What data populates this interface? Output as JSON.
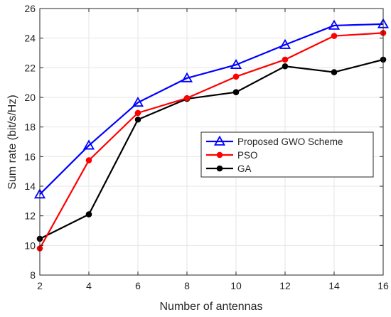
{
  "chart_data": {
    "type": "line",
    "title": "",
    "xlabel": "Number of antennas",
    "ylabel": "Sum rate (bit/s/Hz)",
    "xlim": [
      2,
      16
    ],
    "ylim": [
      8,
      26
    ],
    "xticks": [
      2,
      4,
      6,
      8,
      10,
      12,
      14,
      16
    ],
    "yticks": [
      8,
      10,
      12,
      14,
      16,
      18,
      20,
      22,
      24,
      26
    ],
    "grid": true,
    "legend_position": "center-right",
    "x": [
      2,
      4,
      6,
      8,
      10,
      12,
      14,
      16
    ],
    "series": [
      {
        "name": "Proposed GWO Scheme",
        "color": "#0000ff",
        "marker": "triangle",
        "values": [
          13.45,
          16.75,
          19.65,
          21.3,
          22.2,
          23.55,
          24.85,
          24.95
        ]
      },
      {
        "name": "PSO",
        "color": "#ff0000",
        "marker": "circle",
        "values": [
          9.8,
          15.75,
          18.95,
          19.95,
          21.4,
          22.55,
          24.15,
          24.35
        ]
      },
      {
        "name": "GA",
        "color": "#000000",
        "marker": "circle",
        "values": [
          10.45,
          12.1,
          18.5,
          19.9,
          20.35,
          22.1,
          21.7,
          22.55
        ]
      }
    ]
  }
}
